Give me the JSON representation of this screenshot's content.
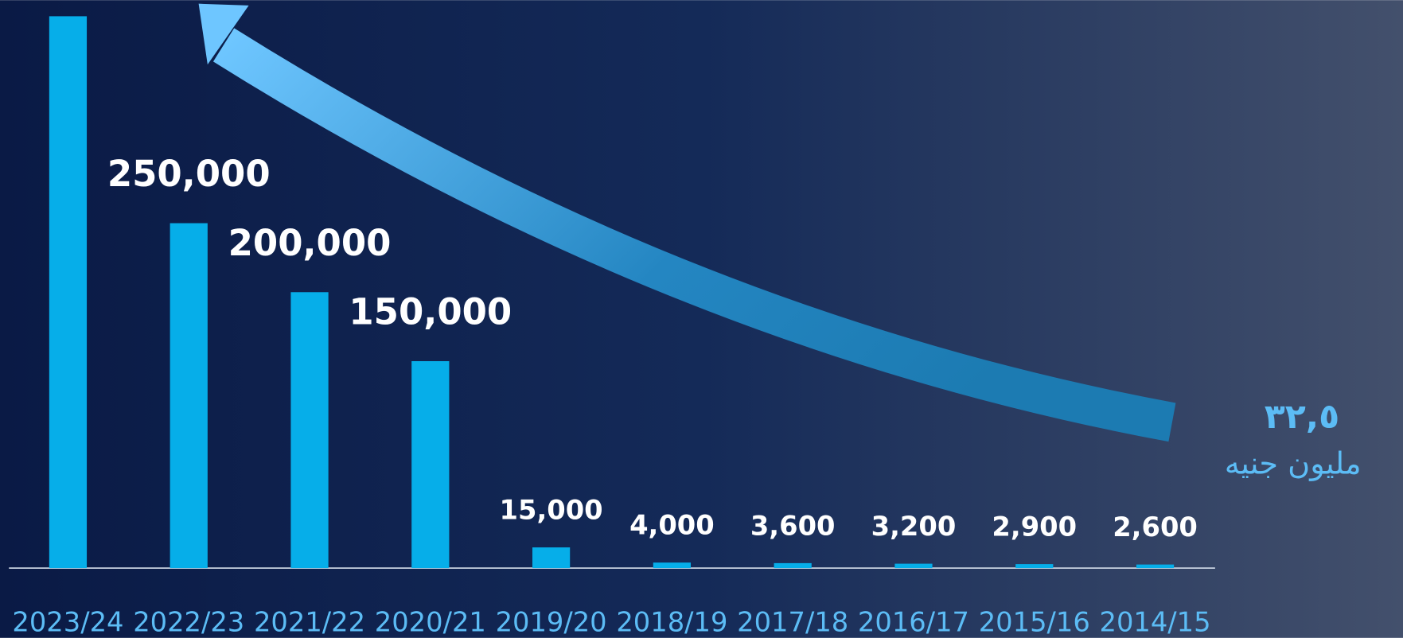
{
  "chart_data": {
    "type": "bar",
    "categories": [
      "2023/24",
      "2022/23",
      "2021/22",
      "2020/21",
      "2019/20",
      "2018/19",
      "2017/18",
      "2016/17",
      "2015/16",
      "2014/15"
    ],
    "values": [
      400000,
      250000,
      200000,
      150000,
      15000,
      4000,
      3600,
      3200,
      2900,
      2600
    ],
    "value_labels": [
      null,
      "250,000",
      "200,000",
      "150,000",
      "15,000",
      "4,000",
      "3,600",
      "3,200",
      "2,900",
      "2,600"
    ],
    "color": "#06aee9",
    "annotations": [
      "٣٢,٥",
      "مليون جنيه"
    ]
  }
}
